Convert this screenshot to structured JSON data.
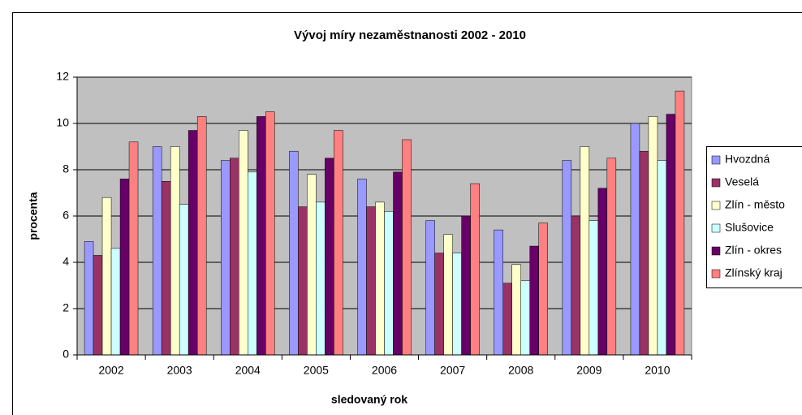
{
  "chart_data": {
    "type": "bar",
    "title": "Vývoj míry nezaměstnanosti 2002 - 2010",
    "x_label": "sledovaný rok",
    "y_label": "procenta",
    "categories": [
      "2002",
      "2003",
      "2004",
      "2005",
      "2006",
      "2007",
      "2008",
      "2009",
      "2010"
    ],
    "series": [
      {
        "name": "Hvozdná",
        "color": "#9999ff",
        "values": [
          4.9,
          9.0,
          8.4,
          8.8,
          7.6,
          5.8,
          5.4,
          8.4,
          10.0
        ]
      },
      {
        "name": "Veselá",
        "color": "#993366",
        "values": [
          4.3,
          7.5,
          8.5,
          6.4,
          6.4,
          4.4,
          3.1,
          6.0,
          8.8
        ]
      },
      {
        "name": "Zlín - město",
        "color": "#ffffcc",
        "values": [
          6.8,
          9.0,
          9.7,
          7.8,
          6.6,
          5.2,
          3.9,
          9.0,
          10.3
        ]
      },
      {
        "name": "Slušovice",
        "color": "#ccffff",
        "values": [
          4.6,
          6.5,
          7.9,
          6.6,
          6.2,
          4.4,
          3.2,
          5.8,
          8.4
        ]
      },
      {
        "name": "Zlín - okres",
        "color": "#660066",
        "values": [
          7.6,
          9.7,
          10.3,
          8.5,
          7.9,
          6.0,
          4.7,
          7.2,
          10.4
        ]
      },
      {
        "name": "Zlínský kraj",
        "color": "#ff8080",
        "values": [
          9.2,
          10.3,
          10.5,
          9.7,
          9.3,
          7.4,
          5.7,
          8.5,
          11.4
        ]
      }
    ],
    "ylim": [
      0,
      12
    ],
    "yticks": [
      0,
      2,
      4,
      6,
      8,
      10,
      12
    ],
    "grid": true,
    "plot_background": "#c0c0c0",
    "legend": "right"
  }
}
